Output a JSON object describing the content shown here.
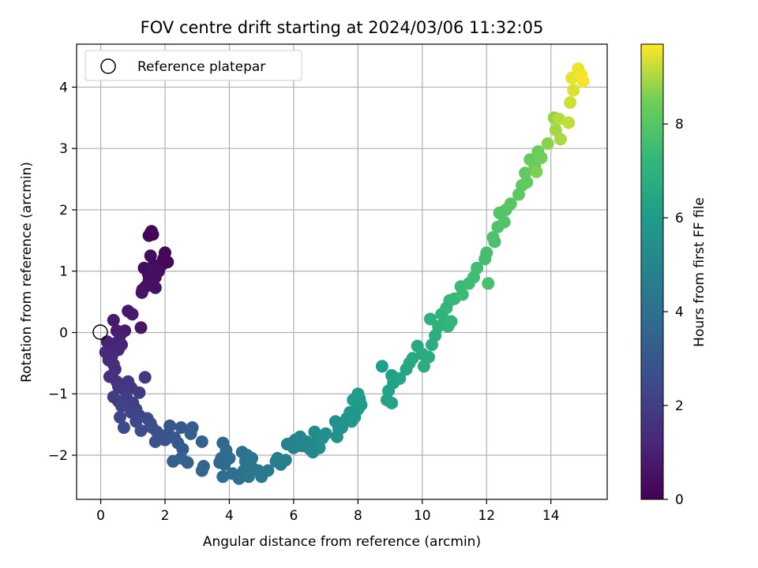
{
  "chart_data": {
    "type": "scatter",
    "title": "FOV centre drift starting at 2024/03/06 11:32:05",
    "xlabel": "Angular distance from reference (arcmin)",
    "ylabel": "Rotation from reference (arcmin)",
    "xlim": [
      -0.75,
      15.75
    ],
    "ylim": [
      -2.72,
      4.7
    ],
    "x_ticks": [
      0,
      2,
      4,
      6,
      8,
      10,
      12,
      14
    ],
    "y_ticks": [
      -2,
      -1,
      0,
      1,
      2,
      3,
      4
    ],
    "grid": true,
    "legend": {
      "position": "top-left",
      "entries": [
        "Reference platepar"
      ]
    },
    "reference_point": {
      "x": 0,
      "y": 0,
      "label": "Reference platepar"
    },
    "colorbar": {
      "label": "Hours from first FF file",
      "range": [
        0,
        9.7
      ],
      "ticks": [
        0,
        2,
        4,
        6,
        8
      ],
      "colormap": "viridis"
    },
    "points": [
      [
        1.55,
        1.62,
        0.1
      ],
      [
        1.62,
        1.6,
        0.12
      ],
      [
        1.5,
        1.58,
        0.15
      ],
      [
        1.58,
        1.65,
        0.18
      ],
      [
        2.0,
        1.3,
        0.2
      ],
      [
        2.08,
        1.15,
        0.22
      ],
      [
        1.95,
        1.2,
        0.25
      ],
      [
        1.9,
        1.1,
        0.28
      ],
      [
        1.55,
        1.25,
        0.3
      ],
      [
        1.65,
        1.1,
        0.32
      ],
      [
        1.35,
        1.05,
        0.35
      ],
      [
        1.48,
        0.95,
        0.38
      ],
      [
        1.8,
        1.0,
        0.4
      ],
      [
        1.7,
        0.9,
        0.42
      ],
      [
        1.6,
        1.02,
        0.45
      ],
      [
        1.5,
        0.85,
        0.48
      ],
      [
        1.7,
        0.73,
        0.5
      ],
      [
        1.4,
        0.75,
        0.52
      ],
      [
        1.3,
        0.7,
        0.55
      ],
      [
        1.28,
        0.65,
        0.58
      ],
      [
        1.25,
        0.08,
        0.65
      ],
      [
        0.85,
        0.35,
        0.7
      ],
      [
        0.98,
        0.3,
        0.75
      ],
      [
        0.4,
        0.2,
        0.8
      ],
      [
        0.5,
        0.03,
        0.85
      ],
      [
        0.75,
        0.03,
        0.9
      ],
      [
        0.6,
        -0.05,
        0.95
      ],
      [
        0.2,
        -0.15,
        1.0
      ],
      [
        0.3,
        -0.22,
        1.05
      ],
      [
        0.45,
        -0.18,
        1.1
      ],
      [
        0.65,
        -0.2,
        1.15
      ],
      [
        0.15,
        -0.32,
        1.2
      ],
      [
        0.55,
        -0.28,
        1.25
      ],
      [
        0.35,
        -0.38,
        1.3
      ],
      [
        0.25,
        -0.45,
        1.35
      ],
      [
        0.4,
        -0.52,
        1.4
      ],
      [
        0.45,
        -0.6,
        1.45
      ],
      [
        0.35,
        -0.7,
        1.5
      ],
      [
        0.28,
        -0.72,
        1.55
      ],
      [
        0.5,
        -0.8,
        1.6
      ],
      [
        0.55,
        -0.88,
        1.65
      ],
      [
        0.85,
        -0.8,
        1.7
      ],
      [
        0.7,
        -0.92,
        1.75
      ],
      [
        0.95,
        -0.9,
        1.8
      ],
      [
        1.38,
        -0.73,
        1.85
      ],
      [
        1.2,
        -0.98,
        1.9
      ],
      [
        0.4,
        -1.05,
        1.95
      ],
      [
        0.55,
        -1.12,
        2.0
      ],
      [
        0.8,
        -1.05,
        2.05
      ],
      [
        1.0,
        -1.15,
        2.1
      ],
      [
        1.1,
        -1.25,
        2.15
      ],
      [
        0.65,
        -1.2,
        2.2
      ],
      [
        0.95,
        -1.3,
        2.25
      ],
      [
        1.2,
        -1.35,
        2.3
      ],
      [
        0.6,
        -1.38,
        2.35
      ],
      [
        1.1,
        -1.45,
        2.4
      ],
      [
        1.45,
        -1.4,
        2.45
      ],
      [
        1.55,
        -1.48,
        2.5
      ],
      [
        0.72,
        -1.55,
        2.55
      ],
      [
        1.25,
        -1.6,
        2.6
      ],
      [
        1.6,
        -1.55,
        2.65
      ],
      [
        1.75,
        -1.62,
        2.7
      ],
      [
        1.85,
        -1.7,
        2.75
      ],
      [
        1.7,
        -1.78,
        2.8
      ],
      [
        2.0,
        -1.75,
        2.85
      ],
      [
        2.15,
        -1.52,
        2.9
      ],
      [
        2.1,
        -1.65,
        2.95
      ],
      [
        2.3,
        -1.72,
        3.0
      ],
      [
        2.5,
        -1.55,
        3.05
      ],
      [
        2.4,
        -1.8,
        3.1
      ],
      [
        2.55,
        -1.9,
        3.15
      ],
      [
        2.85,
        -1.55,
        3.2
      ],
      [
        2.8,
        -1.65,
        3.25
      ],
      [
        2.25,
        -2.1,
        3.3
      ],
      [
        2.5,
        -2.05,
        3.35
      ],
      [
        2.7,
        -2.12,
        3.4
      ],
      [
        3.15,
        -1.78,
        3.45
      ],
      [
        3.2,
        -2.18,
        3.5
      ],
      [
        3.15,
        -2.25,
        3.55
      ],
      [
        3.7,
        -2.12,
        3.6
      ],
      [
        3.8,
        -1.8,
        3.65
      ],
      [
        3.75,
        -2.05,
        3.7
      ],
      [
        3.9,
        -1.92,
        3.75
      ],
      [
        3.85,
        -2.15,
        3.8
      ],
      [
        4.0,
        -2.05,
        3.85
      ],
      [
        3.8,
        -2.35,
        3.9
      ],
      [
        4.1,
        -2.3,
        3.95
      ],
      [
        4.3,
        -2.38,
        4.0
      ],
      [
        4.4,
        -1.95,
        4.05
      ],
      [
        4.55,
        -2.0,
        4.1
      ],
      [
        4.5,
        -2.1,
        4.15
      ],
      [
        4.45,
        -2.25,
        4.2
      ],
      [
        4.6,
        -2.35,
        4.25
      ],
      [
        4.7,
        -2.05,
        4.3
      ],
      [
        4.7,
        -2.2,
        4.35
      ],
      [
        4.9,
        -2.25,
        4.4
      ],
      [
        5.0,
        -2.35,
        4.45
      ],
      [
        5.2,
        -2.25,
        4.5
      ],
      [
        5.45,
        -2.1,
        4.55
      ],
      [
        5.5,
        -2.05,
        4.6
      ],
      [
        5.6,
        -2.15,
        4.65
      ],
      [
        5.75,
        -2.08,
        4.7
      ],
      [
        5.8,
        -1.82,
        4.75
      ],
      [
        5.95,
        -1.8,
        4.8
      ],
      [
        6.0,
        -1.88,
        4.85
      ],
      [
        6.05,
        -1.75,
        4.9
      ],
      [
        6.2,
        -1.7,
        4.95
      ],
      [
        6.25,
        -1.85,
        5.0
      ],
      [
        6.4,
        -1.78,
        5.05
      ],
      [
        6.5,
        -1.9,
        5.1
      ],
      [
        6.6,
        -1.95,
        5.15
      ],
      [
        6.65,
        -1.62,
        5.2
      ],
      [
        6.75,
        -1.75,
        5.25
      ],
      [
        6.8,
        -1.88,
        5.3
      ],
      [
        6.9,
        -1.72,
        5.35
      ],
      [
        7.0,
        -1.65,
        5.4
      ],
      [
        7.3,
        -1.45,
        5.45
      ],
      [
        7.4,
        -1.58,
        5.5
      ],
      [
        7.35,
        -1.7,
        5.55
      ],
      [
        7.5,
        -1.55,
        5.6
      ],
      [
        7.65,
        -1.4,
        5.65
      ],
      [
        7.75,
        -1.3,
        5.7
      ],
      [
        7.8,
        -1.45,
        5.75
      ],
      [
        7.9,
        -1.38,
        5.8
      ],
      [
        8.0,
        -1.25,
        5.85
      ],
      [
        8.05,
        -1.08,
        5.9
      ],
      [
        8.1,
        -1.18,
        5.95
      ],
      [
        7.85,
        -1.1,
        6.0
      ],
      [
        8.0,
        -1.0,
        6.05
      ],
      [
        8.75,
        -0.55,
        6.1
      ],
      [
        9.05,
        -0.7,
        6.15
      ],
      [
        9.1,
        -0.82,
        6.2
      ],
      [
        8.95,
        -0.95,
        6.25
      ],
      [
        9.05,
        -1.15,
        6.3
      ],
      [
        8.9,
        -1.1,
        6.35
      ],
      [
        9.3,
        -0.75,
        6.4
      ],
      [
        9.5,
        -0.6,
        6.45
      ],
      [
        9.6,
        -0.5,
        6.5
      ],
      [
        9.7,
        -0.42,
        6.55
      ],
      [
        9.85,
        -0.22,
        6.6
      ],
      [
        10.0,
        -0.35,
        6.65
      ],
      [
        10.05,
        -0.55,
        6.7
      ],
      [
        10.2,
        -0.4,
        6.75
      ],
      [
        10.3,
        -0.2,
        6.8
      ],
      [
        10.4,
        -0.05,
        6.85
      ],
      [
        10.5,
        0.1,
        6.9
      ],
      [
        10.25,
        0.22,
        6.95
      ],
      [
        10.6,
        0.3,
        7.0
      ],
      [
        10.7,
        0.2,
        7.05
      ],
      [
        10.8,
        0.1,
        7.1
      ],
      [
        10.9,
        0.18,
        7.15
      ],
      [
        10.75,
        0.4,
        7.2
      ],
      [
        10.85,
        0.52,
        7.25
      ],
      [
        11.0,
        0.55,
        7.3
      ],
      [
        11.2,
        0.75,
        7.35
      ],
      [
        11.25,
        0.62,
        7.4
      ],
      [
        11.45,
        0.8,
        7.45
      ],
      [
        11.6,
        0.9,
        7.5
      ],
      [
        11.7,
        1.05,
        7.55
      ],
      [
        11.95,
        1.2,
        7.6
      ],
      [
        12.0,
        1.3,
        7.65
      ],
      [
        12.05,
        0.8,
        7.7
      ],
      [
        12.25,
        1.48,
        7.75
      ],
      [
        12.2,
        1.55,
        7.8
      ],
      [
        12.35,
        1.72,
        7.85
      ],
      [
        12.55,
        1.8,
        7.9
      ],
      [
        12.4,
        1.95,
        7.95
      ],
      [
        12.6,
        2.0,
        8.0
      ],
      [
        12.75,
        2.1,
        8.05
      ],
      [
        13.0,
        2.25,
        8.1
      ],
      [
        13.1,
        2.4,
        8.15
      ],
      [
        13.25,
        2.45,
        8.2
      ],
      [
        13.2,
        2.6,
        8.25
      ],
      [
        13.35,
        2.82,
        8.3
      ],
      [
        13.5,
        2.7,
        8.35
      ],
      [
        13.6,
        2.95,
        8.4
      ],
      [
        13.7,
        2.85,
        8.5
      ],
      [
        13.55,
        2.62,
        8.6
      ],
      [
        13.9,
        3.08,
        8.7
      ],
      [
        14.1,
        3.5,
        8.8
      ],
      [
        14.15,
        3.3,
        8.9
      ],
      [
        14.3,
        3.15,
        9.0
      ],
      [
        14.25,
        3.48,
        9.1
      ],
      [
        14.55,
        3.42,
        9.2
      ],
      [
        14.6,
        3.75,
        9.3
      ],
      [
        14.7,
        3.95,
        9.4
      ],
      [
        14.65,
        4.15,
        9.5
      ],
      [
        14.85,
        4.3,
        9.55
      ],
      [
        14.95,
        4.2,
        9.6
      ],
      [
        15.0,
        4.1,
        9.65
      ]
    ]
  }
}
